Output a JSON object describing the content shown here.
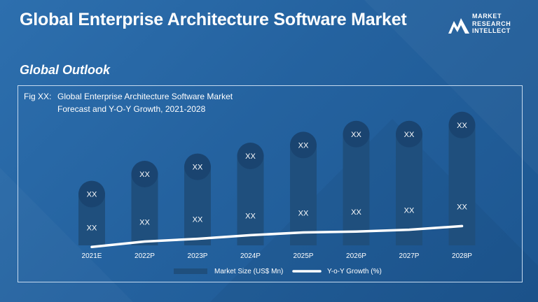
{
  "header": {
    "title": "Global Enterprise Architecture Software Market",
    "subtitle": "Global Outlook"
  },
  "logo": {
    "icon": "mountain-logo-icon",
    "lines": [
      "MARKET",
      "RESEARCH",
      "INTELLECT"
    ]
  },
  "figure": {
    "label": "Fig XX:",
    "title_line1": "Global Enterprise Architecture Software Market",
    "title_line2": "Forecast and Y-O-Y Growth, 2021-2028"
  },
  "colors": {
    "bar": "#1f4f7d",
    "bubble": "#1a4470",
    "line": "#ffffff"
  },
  "chart_data": {
    "type": "bar",
    "categories": [
      "2021E",
      "2022P",
      "2023P",
      "2024P",
      "2025P",
      "2026P",
      "2027P",
      "2028P"
    ],
    "series": [
      {
        "name": "Market Size (US$ Mn)",
        "type": "bar",
        "values": [
          2.9,
          4.0,
          4.4,
          5.0,
          5.6,
          6.2,
          6.2,
          6.7
        ],
        "data_labels": [
          "XX",
          "XX",
          "XX",
          "XX",
          "XX",
          "XX",
          "XX",
          "XX"
        ]
      },
      {
        "name": "Y-o-Y Growth (%)",
        "type": "line",
        "values": [
          4.9,
          5.5,
          5.8,
          6.2,
          6.5,
          6.6,
          6.8,
          7.2
        ],
        "data_labels": [
          "XX",
          "XX",
          "XX",
          "XX",
          "XX",
          "XX",
          "XX",
          "XX"
        ]
      }
    ],
    "legend_position": "bottom",
    "grid": false
  }
}
